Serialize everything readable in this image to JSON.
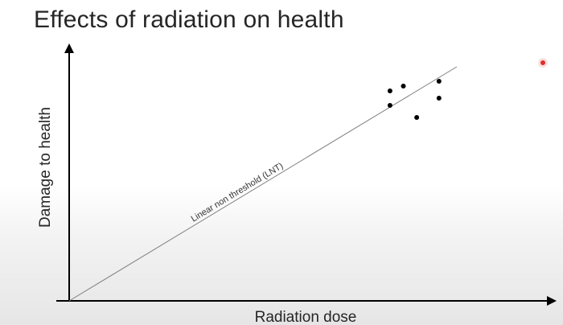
{
  "slide": {
    "title": "Effects of radiation on health"
  },
  "colors": {
    "axis": "#000000",
    "line": "#808080",
    "points": "#000000",
    "pointer": "#e03030"
  },
  "chart_data": {
    "type": "scatter",
    "title": "Effects of radiation on health",
    "xlabel": "Radiation dose",
    "ylabel": "Damage to health",
    "xlim": [
      0,
      1
    ],
    "ylim": [
      0,
      1
    ],
    "grid": false,
    "axis_ticks": false,
    "series": [
      {
        "type": "scatter",
        "values": [
          {
            "x": 0.72,
            "y": 0.81
          },
          {
            "x": 0.72,
            "y": 0.87
          },
          {
            "x": 0.75,
            "y": 0.89
          },
          {
            "x": 0.78,
            "y": 0.76
          },
          {
            "x": 0.83,
            "y": 0.91
          },
          {
            "x": 0.83,
            "y": 0.84
          }
        ]
      },
      {
        "type": "line",
        "values": [
          {
            "x": 0.0,
            "y": 0.0
          },
          {
            "x": 0.87,
            "y": 0.97
          }
        ]
      }
    ],
    "annotations": [
      {
        "text": "Linear non threshold (LNT)",
        "x": 0.38,
        "y": 0.44
      }
    ]
  }
}
